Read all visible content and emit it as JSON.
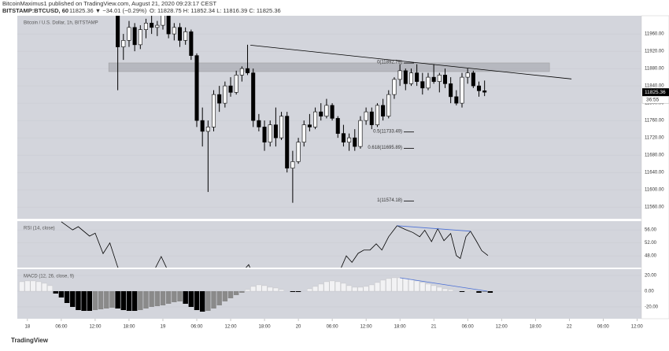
{
  "header": {
    "publisher": "BitcoinMaximus1 published on TradingView.com, August 21, 2020 09:23:17 CEST",
    "symbol": "BITSTAMP:BTCUSD, 60",
    "quote": "11825.36 ▼ −34.01 (−0.29%)",
    "ohlc": "O: 11828.75  H: 11852.34  L: 11816.39  C: 11825.36",
    "brand": "TradingView"
  },
  "chart_data": [
    {
      "type": "candlestick",
      "title": "Bitcoin / U.S. Dollar, 1h, BITSTAMP",
      "x0": 16,
      "candles": [
        [
          12010,
          12020,
          11830,
          11930
        ],
        [
          11930,
          11960,
          11900,
          11945
        ],
        [
          11945,
          11990,
          11930,
          11975
        ],
        [
          11975,
          11985,
          11920,
          11935
        ],
        [
          11935,
          11980,
          11925,
          11970
        ],
        [
          11970,
          11995,
          11950,
          11985
        ],
        [
          11985,
          12010,
          11960,
          11975
        ],
        [
          11975,
          11990,
          11955,
          11980
        ],
        [
          11980,
          12020,
          11970,
          12005
        ],
        [
          12005,
          12015,
          11950,
          11960
        ],
        [
          11960,
          11985,
          11945,
          11975
        ],
        [
          11975,
          11985,
          11930,
          11945
        ],
        [
          11945,
          11975,
          11935,
          11965
        ],
        [
          11965,
          11970,
          11900,
          11910
        ],
        [
          11910,
          11915,
          11745,
          11760
        ],
        [
          11760,
          11790,
          11700,
          11735
        ],
        [
          11735,
          11760,
          11595,
          11745
        ],
        [
          11745,
          11830,
          11735,
          11820
        ],
        [
          11820,
          11840,
          11780,
          11800
        ],
        [
          11800,
          11850,
          11790,
          11840
        ],
        [
          11840,
          11860,
          11815,
          11825
        ],
        [
          11825,
          11875,
          11820,
          11865
        ],
        [
          11865,
          11885,
          11850,
          11880
        ],
        [
          11880,
          11935,
          11865,
          11870
        ],
        [
          11870,
          11880,
          11745,
          11760
        ],
        [
          11760,
          11775,
          11735,
          11745
        ],
        [
          11745,
          11760,
          11690,
          11710
        ],
        [
          11710,
          11760,
          11700,
          11750
        ],
        [
          11750,
          11790,
          11700,
          11720
        ],
        [
          11720,
          11780,
          11715,
          11770
        ],
        [
          11770,
          11780,
          11640,
          11650
        ],
        [
          11650,
          11690,
          11570,
          11665
        ],
        [
          11665,
          11720,
          11660,
          11710
        ],
        [
          11710,
          11760,
          11700,
          11750
        ],
        [
          11750,
          11775,
          11735,
          11745
        ],
        [
          11745,
          11790,
          11740,
          11780
        ],
        [
          11780,
          11800,
          11760,
          11770
        ],
        [
          11770,
          11810,
          11765,
          11795
        ],
        [
          11795,
          11800,
          11760,
          11765
        ],
        [
          11765,
          11770,
          11720,
          11730
        ],
        [
          11730,
          11750,
          11700,
          11710
        ],
        [
          11710,
          11730,
          11690,
          11720
        ],
        [
          11720,
          11740,
          11690,
          11700
        ],
        [
          11700,
          11770,
          11695,
          11760
        ],
        [
          11760,
          11790,
          11750,
          11780
        ],
        [
          11780,
          11790,
          11740,
          11750
        ],
        [
          11750,
          11800,
          11745,
          11795
        ],
        [
          11795,
          11810,
          11760,
          11770
        ],
        [
          11770,
          11830,
          11765,
          11820
        ],
        [
          11820,
          11860,
          11810,
          11855
        ],
        [
          11855,
          11890,
          11840,
          11875
        ],
        [
          11875,
          11880,
          11830,
          11845
        ],
        [
          11845,
          11880,
          11840,
          11870
        ],
        [
          11870,
          11890,
          11840,
          11850
        ],
        [
          11850,
          11870,
          11820,
          11835
        ],
        [
          11835,
          11870,
          11830,
          11860
        ],
        [
          11860,
          11890,
          11845,
          11850
        ],
        [
          11850,
          11870,
          11825,
          11865
        ],
        [
          11865,
          11880,
          11835,
          11845
        ],
        [
          11845,
          11860,
          11800,
          11815
        ],
        [
          11815,
          11830,
          11795,
          11800
        ],
        [
          11800,
          11870,
          11790,
          11860
        ],
        [
          11860,
          11880,
          11845,
          11870
        ],
        [
          11870,
          11875,
          11835,
          11840
        ],
        [
          11840,
          11850,
          11815,
          11828.75
        ],
        [
          11828.75,
          11852.34,
          11816.39,
          11825.36
        ]
      ],
      "up_color": "#ffffff",
      "down_color": "#000000",
      "xlim": [
        -1.8,
        108.8
      ],
      "xticks": [
        {
          "value": 0,
          "label": "18"
        },
        {
          "value": 6,
          "label": "06:00"
        },
        {
          "value": 12,
          "label": "12:00"
        },
        {
          "value": 18,
          "label": "18:00"
        },
        {
          "value": 24,
          "label": "19"
        },
        {
          "value": 30,
          "label": "06:00"
        },
        {
          "value": 36,
          "label": "12:00"
        },
        {
          "value": 42,
          "label": "18:00"
        },
        {
          "value": 48,
          "label": "20"
        },
        {
          "value": 54,
          "label": "06:00"
        },
        {
          "value": 60,
          "label": "12:00"
        },
        {
          "value": 66,
          "label": "18:00"
        },
        {
          "value": 72,
          "label": "21"
        },
        {
          "value": 78,
          "label": "06:00"
        },
        {
          "value": 84,
          "label": "12:00"
        },
        {
          "value": 90,
          "label": "18:00"
        },
        {
          "value": 96,
          "label": "22"
        },
        {
          "value": 102,
          "label": "06:00"
        },
        {
          "value": 108,
          "label": "12:00"
        }
      ],
      "ylim": [
        11533,
        12002
      ],
      "yticks": [
        {
          "value": 11960,
          "label": "11960.00"
        },
        {
          "value": 11920,
          "label": "11920.00"
        },
        {
          "value": 11880,
          "label": "11880.00"
        },
        {
          "value": 11840,
          "label": "11840.00"
        },
        {
          "value": 11800,
          "label": "11800.00"
        },
        {
          "value": 11760,
          "label": "11760.00"
        },
        {
          "value": 11720,
          "label": "11720.00"
        },
        {
          "value": 11680,
          "label": "11680.00"
        },
        {
          "value": 11640,
          "label": "11640.00"
        },
        {
          "value": 11600,
          "label": "11600.00"
        },
        {
          "value": 11560,
          "label": "11560.00"
        }
      ],
      "last_price": {
        "value": 11825.36,
        "label": "11825.36"
      },
      "countdown": "36:55",
      "fib": [
        {
          "value": 11892.79,
          "label": "0(11892.79)"
        },
        {
          "value": 11733.49,
          "label": "0.5(11733.49)"
        },
        {
          "value": 11695.89,
          "label": "0.618(11695.89)"
        },
        {
          "value": 11574.18,
          "label": "1(11574.18)"
        }
      ],
      "zone": {
        "x": [
          14.4,
          92.5
        ],
        "values": [
          11873,
          11893
        ]
      },
      "trendline": {
        "x": [
          39.5,
          96.4
        ],
        "values": [
          11934,
          11856
        ]
      }
    },
    {
      "type": "line",
      "title": "RSI (14, close)",
      "color": "#000000",
      "x": [
        6,
        8,
        9,
        11,
        12,
        13.4,
        14.6,
        16,
        18,
        22,
        23.7,
        25,
        30,
        38,
        39.2,
        40,
        55,
        56.5,
        57.5,
        58.6,
        59.6,
        60.7,
        61.8,
        62.8,
        64,
        65.5,
        67,
        68.3,
        69.5,
        70.4,
        71.6,
        72.7,
        73.8,
        75,
        76,
        76.7,
        77.7,
        78.5,
        79.5,
        80.5,
        81.6
      ],
      "values": [
        58.5,
        56,
        57,
        54.1,
        55,
        48.7,
        52,
        44.5,
        41,
        42,
        47.8,
        43,
        38,
        43,
        45.3,
        42,
        42,
        48,
        46,
        48.8,
        49.8,
        49.8,
        51.7,
        49.8,
        53.9,
        57.3,
        56.1,
        55.2,
        53.9,
        55.9,
        52.4,
        56.4,
        52.7,
        54.9,
        48.1,
        47.2,
        53.9,
        55.6,
        52.7,
        49.6,
        48.1
      ],
      "ylim": [
        44.4,
        58.7
      ],
      "yticks": [
        {
          "value": 56,
          "label": "56.00"
        },
        {
          "value": 52,
          "label": "52.00"
        },
        {
          "value": 48,
          "label": "48.00"
        }
      ],
      "trendline": {
        "x": [
          65.5,
          78.5
        ],
        "values": [
          57.3,
          55.6
        ],
        "color": "#4a6fd6"
      }
    },
    {
      "type": "bar",
      "title": "MACD (12, 26, close, 9)",
      "x0": -1,
      "values": [
        12,
        13,
        13,
        12,
        10,
        7,
        -3,
        -8,
        -15,
        -20,
        -24,
        -25,
        -25,
        -24,
        -23,
        -22,
        -21,
        -22,
        -24,
        -25,
        -25,
        -24,
        -22,
        -20,
        -19,
        -18,
        -16,
        -14,
        -13,
        -16,
        -20,
        -24,
        -26,
        -25,
        -22,
        -18,
        -13,
        -9,
        -5,
        -2,
        2,
        6,
        8,
        7,
        5,
        4,
        2,
        0,
        -1,
        -1,
        0,
        3,
        6,
        9,
        12,
        13,
        12,
        10,
        7,
        5,
        5,
        6,
        8,
        11,
        14,
        16,
        17,
        17,
        16,
        15,
        13,
        11,
        9,
        7,
        5,
        3,
        2,
        0,
        -1,
        1,
        0,
        -2,
        -1,
        -2
      ],
      "colors": {
        "pos": "#f2f2f4",
        "neg_fall": "#000000",
        "neg_rise": "#8a8a8a"
      },
      "ylim": [
        -35,
        28
      ],
      "yticks": [
        {
          "value": 20,
          "label": "20.00"
        },
        {
          "value": 0,
          "label": "0.00"
        },
        {
          "value": -20,
          "label": "-20.00"
        }
      ],
      "trendline": {
        "x": [
          66,
          81.5
        ],
        "values": [
          17,
          0
        ],
        "color": "#4a6fd6"
      }
    }
  ]
}
